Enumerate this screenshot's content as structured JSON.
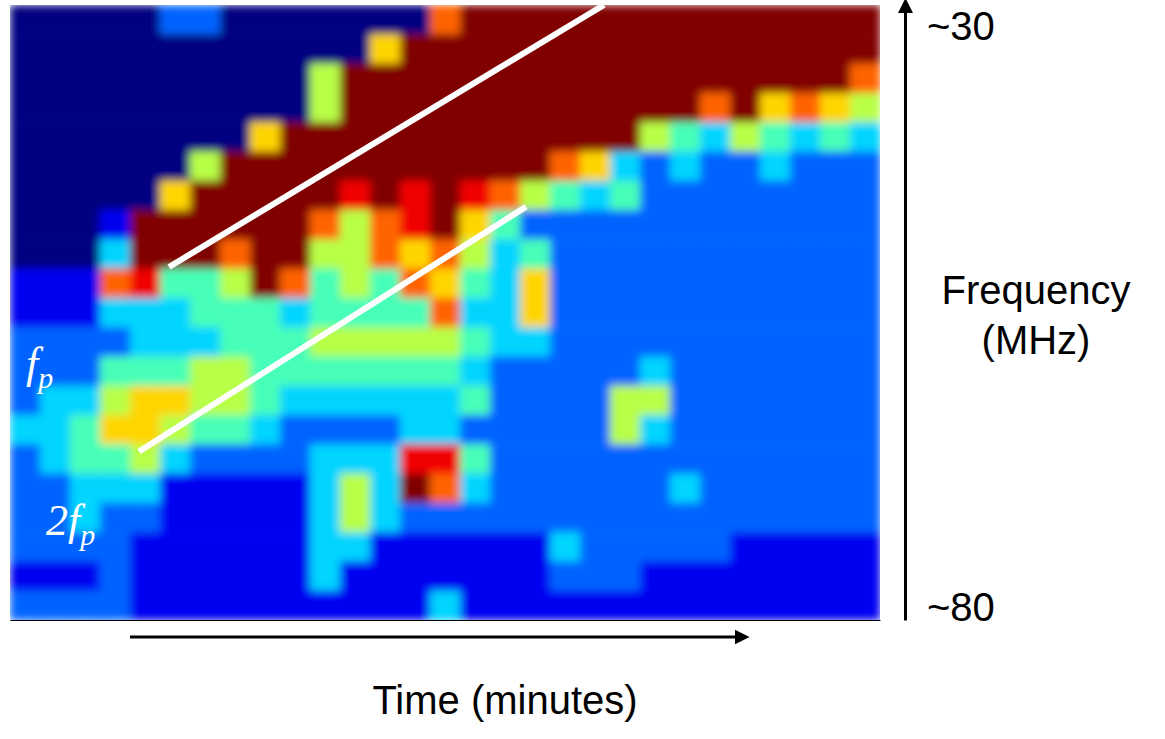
{
  "chart_data": {
    "type": "heatmap",
    "x_label": "Time (minutes)",
    "y_label": "Frequency (MHz)",
    "xlim": [
      0,
      29
    ],
    "ylim": [
      30,
      80
    ],
    "yticks": [
      {
        "value": 30,
        "label": "~30"
      },
      {
        "value": 80,
        "label": "~80"
      }
    ],
    "tick_labels": "y",
    "zlim": [
      0,
      9
    ],
    "cells": [
      [
        0,
        0,
        0,
        0,
        0,
        2,
        2,
        0,
        0,
        0,
        0,
        0,
        0,
        0,
        7,
        9,
        9,
        9,
        9,
        9,
        9,
        9,
        9,
        9,
        9,
        9,
        9,
        9,
        9
      ],
      [
        0,
        0,
        0,
        0,
        0,
        0,
        0,
        0,
        0,
        0,
        0,
        0,
        6,
        9,
        9,
        9,
        9,
        9,
        9,
        9,
        9,
        9,
        9,
        9,
        9,
        9,
        9,
        9,
        9
      ],
      [
        0,
        0,
        0,
        0,
        0,
        0,
        0,
        0,
        0,
        0,
        5,
        9,
        9,
        9,
        9,
        9,
        9,
        9,
        9,
        9,
        9,
        9,
        9,
        9,
        9,
        9,
        9,
        9,
        7
      ],
      [
        0,
        0,
        0,
        0,
        0,
        0,
        0,
        0,
        0,
        0,
        5,
        9,
        9,
        9,
        9,
        9,
        9,
        9,
        9,
        9,
        9,
        9,
        9,
        7,
        9,
        6,
        7,
        6,
        5
      ],
      [
        0,
        0,
        0,
        0,
        0,
        0,
        0,
        0,
        6,
        9,
        9,
        9,
        9,
        9,
        9,
        9,
        9,
        9,
        9,
        9,
        9,
        5,
        4,
        3,
        5,
        4,
        3,
        4,
        3
      ],
      [
        0,
        0,
        0,
        0,
        0,
        0,
        5,
        9,
        9,
        9,
        9,
        9,
        9,
        9,
        9,
        9,
        9,
        9,
        7,
        6,
        3,
        2,
        3,
        2,
        2,
        3,
        2,
        2,
        2
      ],
      [
        0,
        0,
        0,
        0,
        0,
        6,
        9,
        9,
        9,
        9,
        9,
        8,
        9,
        8,
        9,
        8,
        7,
        5,
        4,
        3,
        4,
        2,
        2,
        2,
        2,
        2,
        2,
        2,
        2
      ],
      [
        0,
        0,
        0,
        1,
        9,
        9,
        9,
        9,
        9,
        9,
        7,
        5,
        7,
        8,
        9,
        6,
        4,
        2,
        2,
        2,
        2,
        2,
        2,
        2,
        2,
        2,
        2,
        2,
        2
      ],
      [
        0,
        0,
        0,
        3,
        9,
        9,
        9,
        7,
        9,
        9,
        5,
        5,
        7,
        6,
        7,
        5,
        3,
        4,
        2,
        2,
        2,
        2,
        2,
        2,
        2,
        2,
        2,
        2,
        2
      ],
      [
        1,
        1,
        1,
        7,
        8,
        4,
        4,
        5,
        9,
        7,
        4,
        5,
        4,
        7,
        6,
        4,
        3,
        6,
        2,
        2,
        2,
        2,
        2,
        2,
        2,
        2,
        2,
        2,
        2
      ],
      [
        1,
        1,
        1,
        3,
        3,
        3,
        4,
        4,
        4,
        3,
        4,
        4,
        4,
        4,
        7,
        3,
        3,
        6,
        2,
        2,
        2,
        2,
        2,
        2,
        2,
        2,
        2,
        2,
        2
      ],
      [
        2,
        2,
        2,
        2,
        3,
        3,
        3,
        4,
        4,
        4,
        5,
        5,
        5,
        5,
        5,
        4,
        3,
        3,
        2,
        2,
        2,
        2,
        2,
        2,
        2,
        2,
        2,
        2,
        2
      ],
      [
        2,
        2,
        2,
        4,
        4,
        4,
        5,
        5,
        4,
        4,
        4,
        4,
        4,
        4,
        4,
        3,
        2,
        2,
        2,
        2,
        2,
        3,
        2,
        2,
        2,
        2,
        2,
        2,
        2
      ],
      [
        2,
        3,
        3,
        5,
        6,
        6,
        5,
        5,
        4,
        3,
        3,
        3,
        3,
        3,
        3,
        4,
        2,
        2,
        2,
        2,
        5,
        5,
        2,
        2,
        2,
        2,
        2,
        2,
        2
      ],
      [
        3,
        3,
        4,
        6,
        6,
        5,
        4,
        4,
        3,
        2,
        2,
        2,
        2,
        3,
        3,
        2,
        2,
        2,
        2,
        2,
        5,
        3,
        2,
        2,
        2,
        2,
        2,
        2,
        2
      ],
      [
        2,
        3,
        4,
        4,
        5,
        3,
        2,
        2,
        2,
        2,
        3,
        3,
        3,
        8,
        8,
        4,
        2,
        2,
        2,
        2,
        2,
        2,
        2,
        2,
        2,
        2,
        2,
        2,
        2
      ],
      [
        2,
        2,
        3,
        3,
        3,
        1,
        1,
        1,
        1,
        1,
        3,
        5,
        3,
        9,
        7,
        3,
        2,
        2,
        2,
        2,
        2,
        2,
        3,
        2,
        2,
        2,
        2,
        2,
        2
      ],
      [
        2,
        2,
        3,
        2,
        2,
        1,
        1,
        1,
        1,
        1,
        3,
        5,
        3,
        2,
        2,
        2,
        2,
        2,
        2,
        2,
        2,
        2,
        2,
        2,
        2,
        2,
        2,
        2,
        2
      ],
      [
        2,
        2,
        2,
        2,
        1,
        1,
        1,
        1,
        1,
        1,
        3,
        3,
        1,
        1,
        1,
        1,
        1,
        1,
        3,
        2,
        2,
        2,
        2,
        2,
        1,
        1,
        1,
        1,
        1
      ],
      [
        1,
        1,
        1,
        2,
        1,
        1,
        1,
        1,
        1,
        1,
        3,
        1,
        1,
        1,
        1,
        1,
        1,
        1,
        2,
        2,
        2,
        1,
        1,
        1,
        1,
        1,
        1,
        1,
        1
      ],
      [
        2,
        2,
        2,
        2,
        1,
        1,
        1,
        1,
        1,
        1,
        1,
        1,
        1,
        1,
        3,
        1,
        1,
        1,
        1,
        1,
        1,
        1,
        1,
        1,
        1,
        1,
        1,
        1,
        1
      ]
    ],
    "annotations": [
      {
        "text": "f",
        "sub": "p",
        "x": [
          5.3,
          19.8
        ],
        "y": [
          51.3,
          30.0
        ]
      },
      {
        "text": "2f",
        "sub": "p",
        "x": [
          4.3,
          17.2
        ],
        "y": [
          66.3,
          46.4
        ]
      }
    ]
  }
}
